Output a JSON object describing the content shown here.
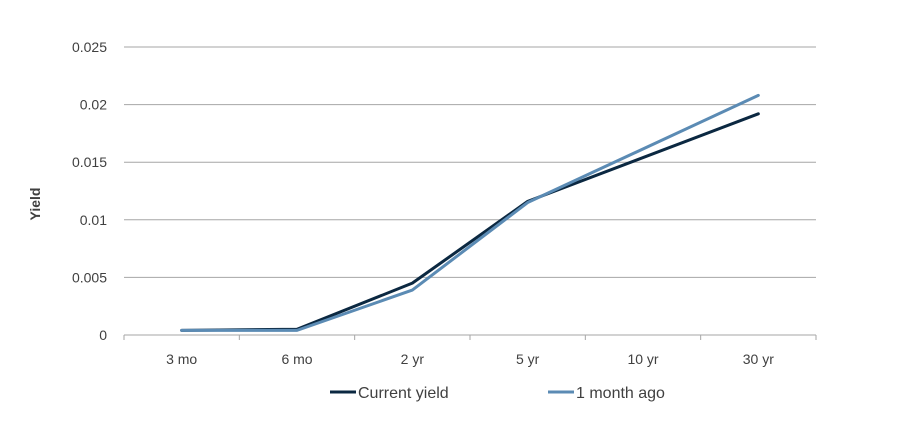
{
  "chart_data": {
    "type": "line",
    "categories": [
      "3 mo",
      "6 mo",
      "2 yr",
      "5 yr",
      "10 yr",
      "30 yr"
    ],
    "series": [
      {
        "name": "Current yield",
        "values": [
          0.0004,
          0.0005,
          0.0045,
          0.0116,
          null,
          0.0192
        ],
        "color": "#0b2841"
      },
      {
        "name": "1 month ago",
        "values": [
          0.0004,
          0.0004,
          0.0039,
          0.0115,
          null,
          0.0208
        ],
        "color": "#5b8bb4"
      }
    ],
    "ylabel": "Yield",
    "xlabel": "",
    "ylim": [
      0,
      0.025
    ],
    "yticks": [
      0,
      0.005,
      0.01,
      0.015,
      0.02,
      0.025
    ],
    "ytick_labels": [
      "0",
      "0.005",
      "0.01",
      "0.015",
      "0.02",
      "0.025"
    ],
    "grid": true,
    "legend_position": "bottom"
  }
}
